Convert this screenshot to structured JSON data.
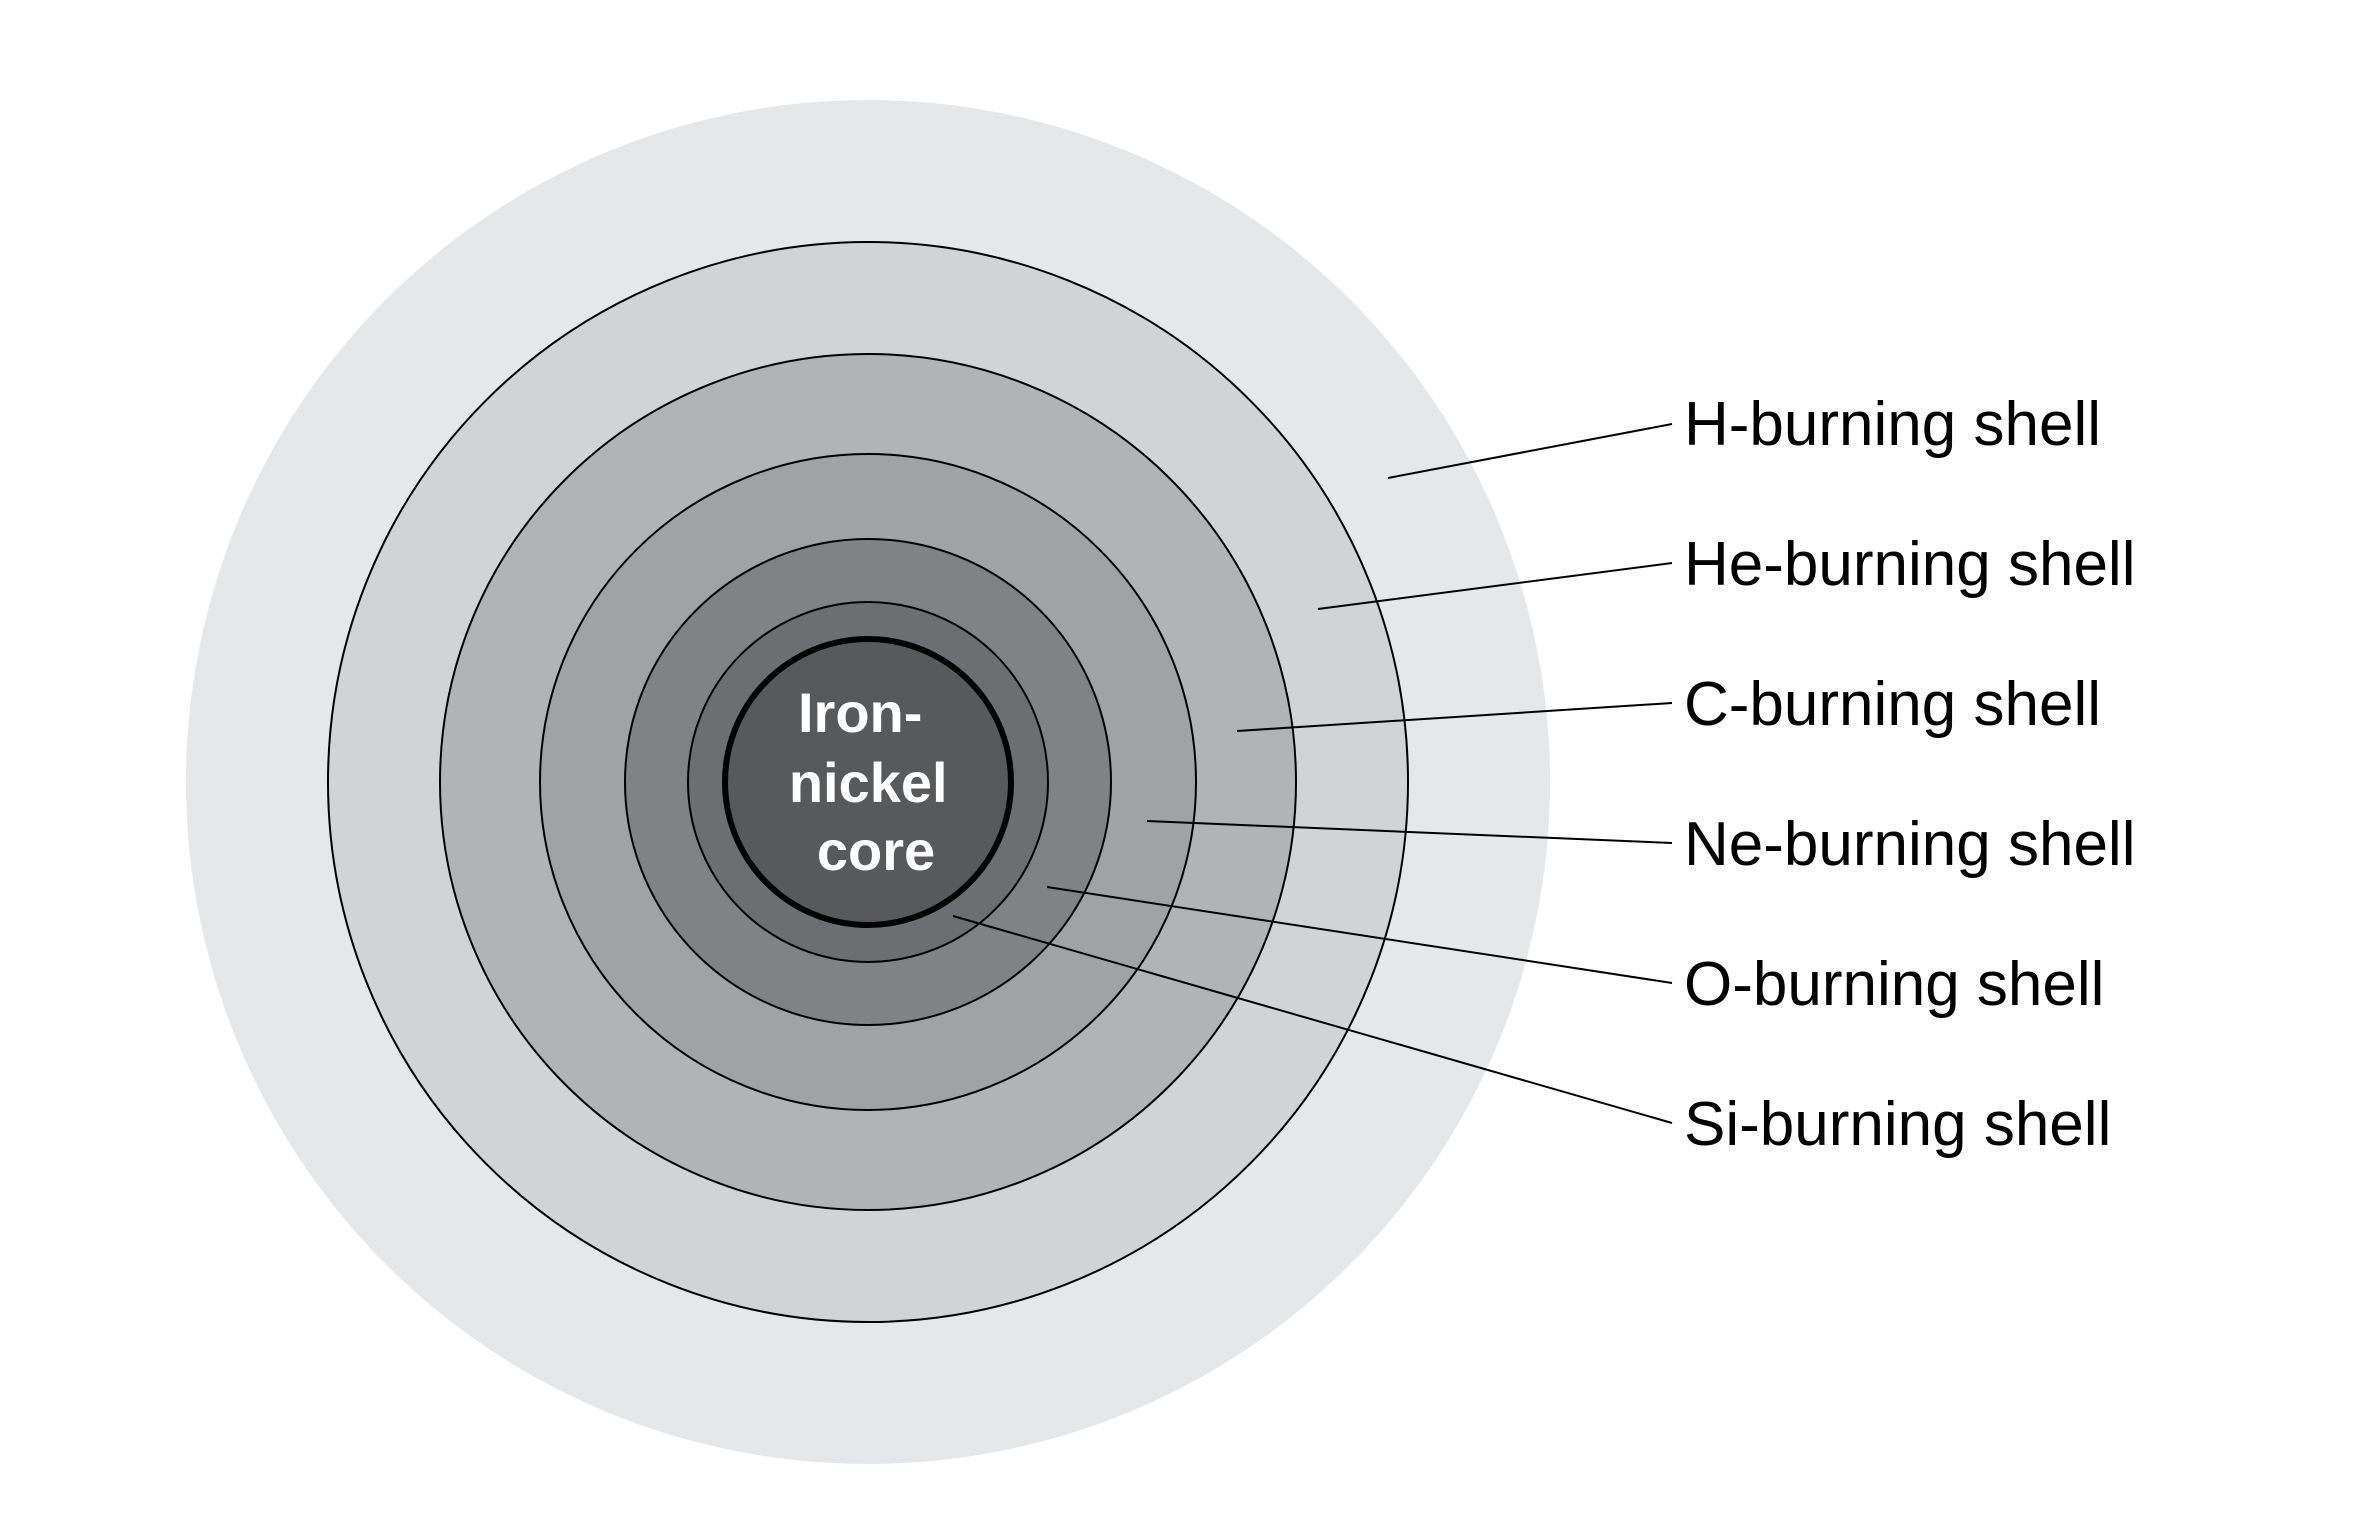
{
  "core": {
    "label_lines": [
      "Iron-",
      "nickel",
      "core"
    ]
  },
  "shells": [
    {
      "label": "H-burning shell"
    },
    {
      "label": "He-burning shell"
    },
    {
      "label": "C-burning shell"
    },
    {
      "label": "Ne-burning shell"
    },
    {
      "label": "O-burning shell"
    },
    {
      "label": "Si-burning shell"
    }
  ],
  "colors": {
    "outer_envelope": "#e6e7e8",
    "h_shell_zone": "#d1d3d4",
    "he_shell_zone": "#b1b3b6",
    "c_shell_zone": "#a0a2a5",
    "ne_shell_zone": "#808285",
    "o_shell_zone": "#6d6e71",
    "core": "#58595b",
    "lines": "#000000"
  }
}
